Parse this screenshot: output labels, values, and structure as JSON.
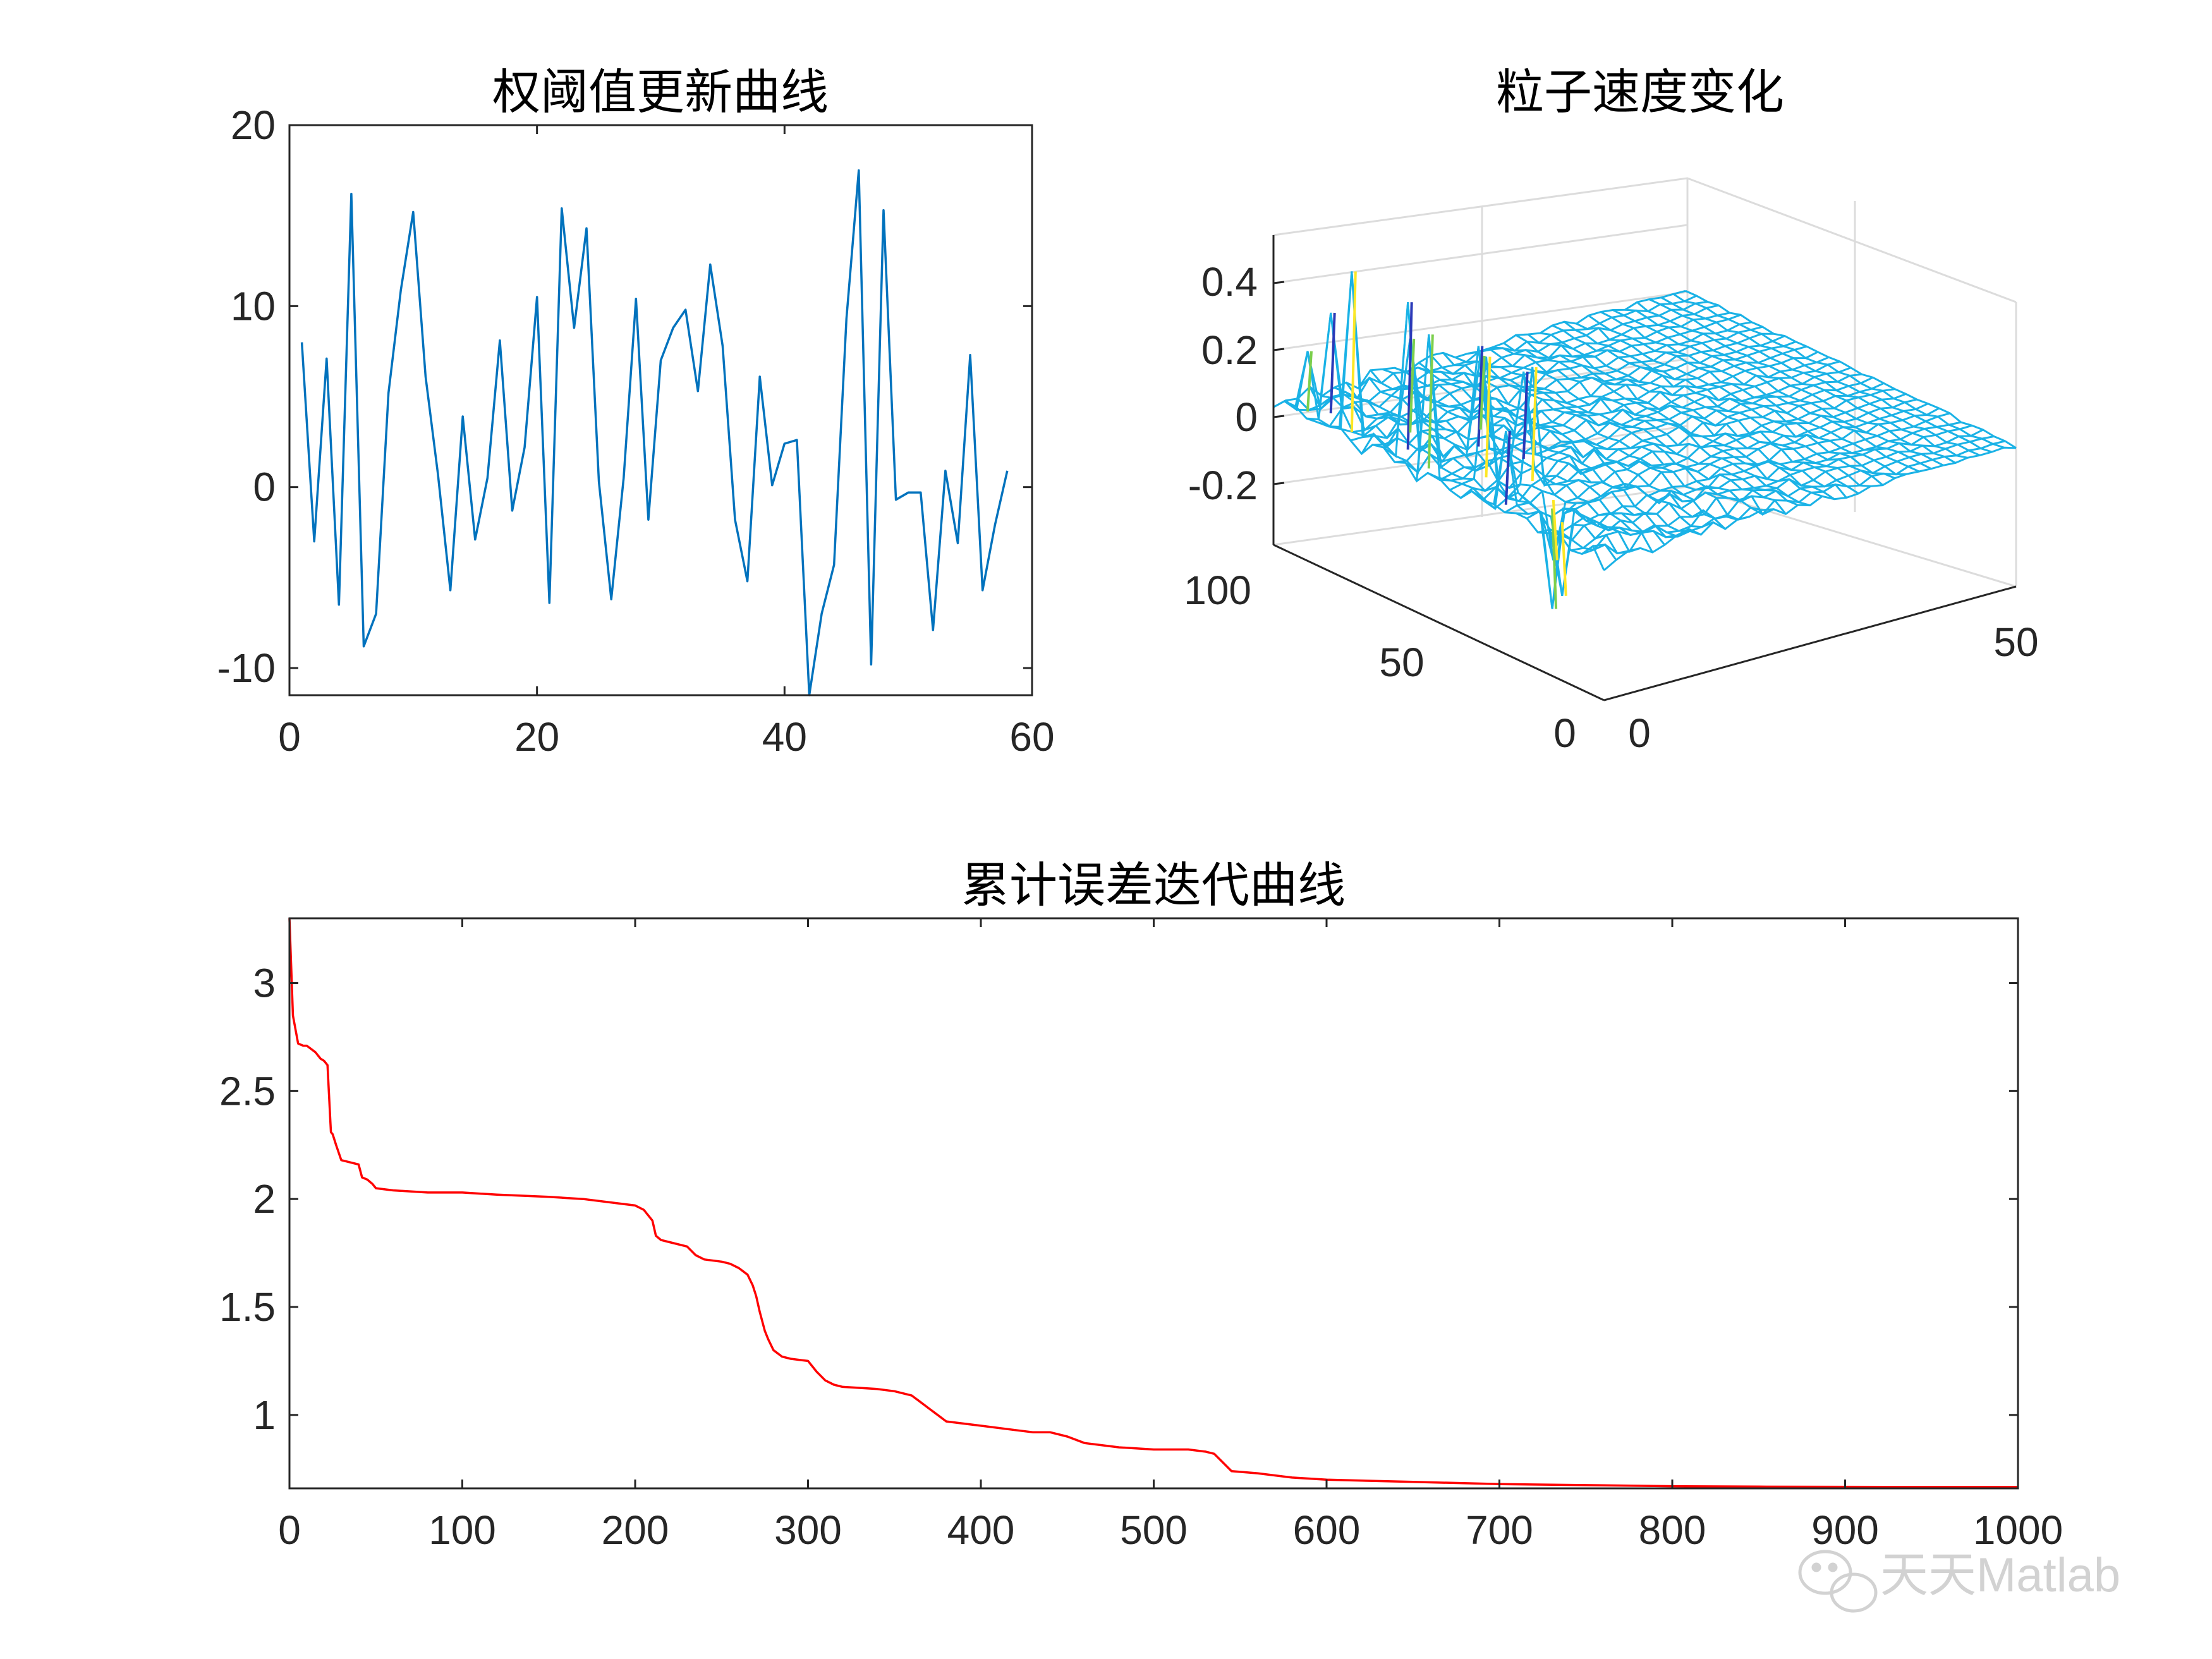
{
  "chart_data": [
    {
      "type": "line",
      "title": "权阈值更新曲线",
      "xlim": [
        0,
        60
      ],
      "ylim": [
        -11.5,
        20
      ],
      "xticks": [
        0,
        20,
        40,
        60
      ],
      "yticks": [
        -10,
        0,
        10,
        20
      ],
      "xticklabels": [
        "0",
        "20",
        "40",
        "60"
      ],
      "yticklabels": [
        "-10",
        "0",
        "10",
        "20"
      ],
      "color": "#0072bd",
      "x": [
        1,
        2,
        3,
        4,
        5,
        6,
        7,
        8,
        9,
        10,
        11,
        12,
        13,
        14,
        15,
        16,
        17,
        18,
        19,
        20,
        21,
        22,
        23,
        24,
        25,
        26,
        27,
        28,
        29,
        30,
        31,
        32,
        33,
        34,
        35,
        36,
        37,
        38,
        39,
        40,
        41,
        42,
        43,
        44,
        45,
        46,
        47,
        48,
        49,
        50,
        51,
        52,
        53,
        54,
        55,
        56,
        57,
        58
      ],
      "y": [
        8.0,
        -3.0,
        7.1,
        -6.5,
        16.2,
        -8.8,
        -7.0,
        5.2,
        10.9,
        15.2,
        6.1,
        0.7,
        -5.7,
        3.9,
        -2.9,
        0.5,
        8.1,
        -1.3,
        2.2,
        10.5,
        -6.4,
        15.4,
        8.8,
        14.3,
        0.3,
        -6.2,
        0.5,
        10.4,
        -1.8,
        7.0,
        8.8,
        9.8,
        5.3,
        12.3,
        7.8,
        -1.8,
        -5.2,
        6.1,
        0.1,
        2.4,
        2.6,
        -11.5,
        -7.0,
        -4.3,
        9.3,
        17.5,
        -9.8,
        15.3,
        -0.7,
        -0.3,
        -0.3,
        -7.9,
        0.9,
        -3.1,
        7.3,
        -5.7,
        -2.1,
        0.9
      ]
    },
    {
      "type": "surface",
      "title": "粒子速度变化",
      "zlim": [
        -0.3,
        0.5
      ],
      "zticklabels": [
        "0.4",
        "0.2",
        "0",
        "-0.2"
      ],
      "zticks": [
        0.4,
        0.2,
        0,
        -0.2
      ],
      "yticklabels": [
        "100",
        "50",
        "0"
      ],
      "xticklabels": [
        "0",
        "50"
      ],
      "color": "#1ab2e6",
      "peak_colors": [
        "#fde725",
        "#2a3ab8",
        "#7ccf4c"
      ]
    },
    {
      "type": "line",
      "title": "累计误差迭代曲线",
      "xlim": [
        0,
        1000
      ],
      "ylim": [
        0.66,
        3.3
      ],
      "xticks": [
        0,
        100,
        200,
        300,
        400,
        500,
        600,
        700,
        800,
        900,
        1000
      ],
      "yticks": [
        1,
        1.5,
        2,
        2.5,
        3
      ],
      "xticklabels": [
        "0",
        "100",
        "200",
        "300",
        "400",
        "500",
        "600",
        "700",
        "800",
        "900",
        "1000"
      ],
      "yticklabels": [
        "1",
        "1.5",
        "2",
        "2.5",
        "3"
      ],
      "color": "#ff0000",
      "x": [
        0,
        2,
        5,
        8,
        10,
        15,
        18,
        20,
        22,
        24,
        25,
        27,
        30,
        35,
        40,
        42,
        45,
        48,
        50,
        60,
        80,
        100,
        120,
        150,
        170,
        190,
        200,
        205,
        210,
        212,
        215,
        220,
        230,
        235,
        240,
        250,
        255,
        260,
        265,
        268,
        270,
        272,
        275,
        277,
        280,
        285,
        290,
        300,
        305,
        310,
        315,
        320,
        340,
        350,
        360,
        365,
        370,
        375,
        380,
        390,
        400,
        420,
        430,
        440,
        450,
        460,
        480,
        500,
        520,
        530,
        535,
        540,
        545,
        560,
        580,
        600,
        650,
        700,
        750,
        800,
        850,
        900,
        950,
        1000
      ],
      "y": [
        3.3,
        2.85,
        2.72,
        2.71,
        2.71,
        2.68,
        2.65,
        2.64,
        2.62,
        2.31,
        2.3,
        2.25,
        2.18,
        2.17,
        2.16,
        2.1,
        2.09,
        2.07,
        2.05,
        2.04,
        2.03,
        2.03,
        2.02,
        2.01,
        2.0,
        1.98,
        1.97,
        1.95,
        1.9,
        1.83,
        1.81,
        1.8,
        1.78,
        1.74,
        1.72,
        1.71,
        1.7,
        1.68,
        1.65,
        1.6,
        1.55,
        1.48,
        1.39,
        1.35,
        1.3,
        1.27,
        1.26,
        1.25,
        1.2,
        1.16,
        1.14,
        1.13,
        1.12,
        1.11,
        1.09,
        1.06,
        1.03,
        1.0,
        0.97,
        0.96,
        0.95,
        0.93,
        0.92,
        0.92,
        0.9,
        0.87,
        0.85,
        0.84,
        0.84,
        0.83,
        0.82,
        0.78,
        0.74,
        0.73,
        0.71,
        0.7,
        0.69,
        0.68,
        0.675,
        0.67,
        0.668,
        0.667,
        0.666,
        0.666
      ]
    }
  ],
  "watermark": {
    "text": "天天Matlab",
    "icon": "wechat-icon"
  }
}
